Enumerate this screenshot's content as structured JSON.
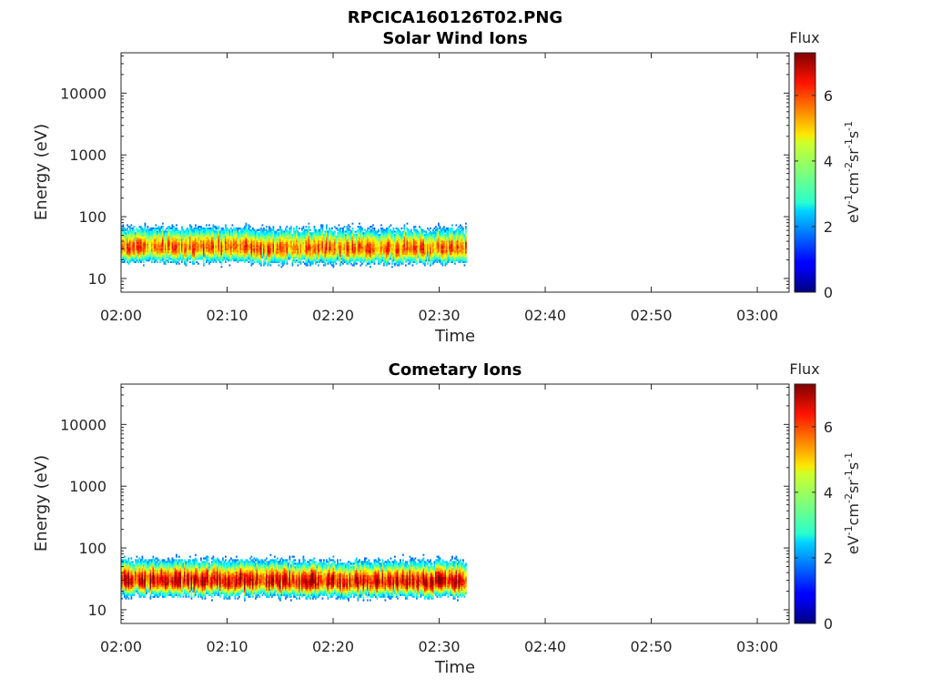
{
  "figure": {
    "title": "RPCICA160126T02.PNG"
  },
  "colorbar": {
    "label": "Flux",
    "ticks": [
      "0",
      "2",
      "4",
      "6"
    ],
    "range": [
      0,
      7.3
    ],
    "unit_base": [
      "eV",
      "cm",
      "sr",
      "s"
    ],
    "unit_exp": [
      "-1",
      "-2",
      "-1",
      "-1"
    ],
    "colormap": "jet"
  },
  "chart_data": [
    {
      "type": "heatmap",
      "title": "Solar Wind Ions",
      "xlabel": "Time",
      "ylabel": "Energy (eV)",
      "x_ticks": [
        "02:00",
        "02:10",
        "02:20",
        "02:30",
        "02:40",
        "02:50",
        "03:00"
      ],
      "y_ticks": [
        "10",
        "100",
        "1000",
        "10000"
      ],
      "yscale": "log",
      "ylim": [
        6,
        45000
      ],
      "xlim_minutes": [
        0,
        63
      ],
      "data_extent_minutes": [
        0,
        32.5
      ],
      "band": {
        "energy_low_eV": 15,
        "energy_high_eV": 80,
        "peak_energy_eV": 32,
        "peak_flux": 6.0
      }
    },
    {
      "type": "heatmap",
      "title": "Cometary Ions",
      "xlabel": "Time",
      "ylabel": "Energy (eV)",
      "x_ticks": [
        "02:00",
        "02:10",
        "02:20",
        "02:30",
        "02:40",
        "02:50",
        "03:00"
      ],
      "y_ticks": [
        "10",
        "100",
        "1000",
        "10000"
      ],
      "yscale": "log",
      "ylim": [
        6,
        45000
      ],
      "xlim_minutes": [
        0,
        63
      ],
      "data_extent_minutes": [
        0,
        32.5
      ],
      "band": {
        "energy_low_eV": 13,
        "energy_high_eV": 80,
        "peak_energy_eV": 30,
        "peak_flux": 7.0
      }
    }
  ]
}
